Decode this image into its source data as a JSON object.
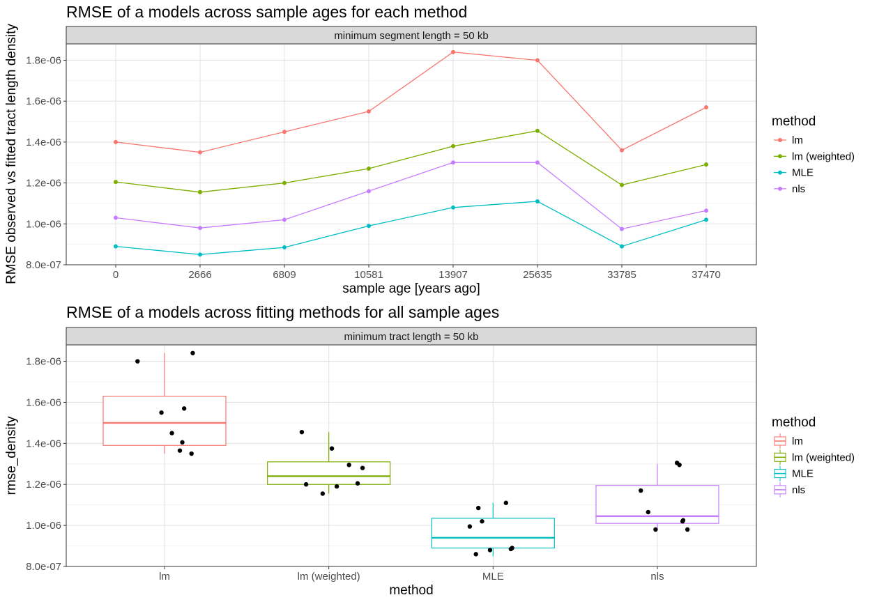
{
  "chart_data": [
    {
      "type": "line",
      "title": "RMSE of a models across sample ages for each method",
      "facet_label": "minimum segment length = 50 kb",
      "xlabel": "sample age [years ago]",
      "ylabel": "RMSE observed vs fitted tract length density",
      "categories": [
        "0",
        "2666",
        "6809",
        "10581",
        "13907",
        "25635",
        "33785",
        "37470"
      ],
      "ylim": [
        8e-07,
        1.88e-06
      ],
      "yticks": [
        8e-07,
        1e-06,
        1.2e-06,
        1.4e-06,
        1.6e-06,
        1.8e-06
      ],
      "ytick_labels": [
        "8.0e-07",
        "1.0e-06",
        "1.2e-06",
        "1.4e-06",
        "1.6e-06",
        "1.8e-06"
      ],
      "grid": true,
      "legend": {
        "title": "method",
        "position": "right"
      },
      "series": [
        {
          "name": "lm",
          "color": "#F8766D",
          "values": [
            1.4e-06,
            1.35e-06,
            1.45e-06,
            1.55e-06,
            1.84e-06,
            1.8e-06,
            1.36e-06,
            1.57e-06
          ]
        },
        {
          "name": "lm (weighted)",
          "color": "#7CAE00",
          "values": [
            1.205e-06,
            1.155e-06,
            1.2e-06,
            1.27e-06,
            1.38e-06,
            1.455e-06,
            1.19e-06,
            1.29e-06
          ]
        },
        {
          "name": "MLE",
          "color": "#00BFC4",
          "values": [
            8.9e-07,
            8.5e-07,
            8.85e-07,
            9.9e-07,
            1.08e-06,
            1.11e-06,
            8.9e-07,
            1.02e-06
          ]
        },
        {
          "name": "nls",
          "color": "#C77CFF",
          "values": [
            1.03e-06,
            9.8e-07,
            1.02e-06,
            1.16e-06,
            1.3e-06,
            1.3e-06,
            9.75e-07,
            1.065e-06
          ]
        }
      ]
    },
    {
      "type": "box",
      "title": "RMSE of a models across fitting methods for all sample ages",
      "facet_label": "minimum tract length = 50 kb",
      "xlabel": "method",
      "ylabel": "rmse_density",
      "categories": [
        "lm",
        "lm (weighted)",
        "MLE",
        "nls"
      ],
      "ylim": [
        8e-07,
        1.88e-06
      ],
      "yticks": [
        8e-07,
        1e-06,
        1.2e-06,
        1.4e-06,
        1.6e-06,
        1.8e-06
      ],
      "ytick_labels": [
        "8.0e-07",
        "1.0e-06",
        "1.2e-06",
        "1.4e-06",
        "1.6e-06",
        "1.8e-06"
      ],
      "grid": true,
      "legend": {
        "title": "method",
        "position": "right"
      },
      "boxes": [
        {
          "name": "lm",
          "color": "#F8766D",
          "min": 1.35e-06,
          "q1": 1.39e-06,
          "median": 1.5e-06,
          "q3": 1.63e-06,
          "max": 1.84e-06
        },
        {
          "name": "lm (weighted)",
          "color": "#7CAE00",
          "min": 1.155e-06,
          "q1": 1.2e-06,
          "median": 1.24e-06,
          "q3": 1.31e-06,
          "max": 1.455e-06
        },
        {
          "name": "MLE",
          "color": "#00BFC4",
          "min": 8.5e-07,
          "q1": 8.9e-07,
          "median": 9.4e-07,
          "q3": 1.035e-06,
          "max": 1.11e-06
        },
        {
          "name": "nls",
          "color": "#C77CFF",
          "min": 9.75e-07,
          "q1": 1.01e-06,
          "median": 1.045e-06,
          "q3": 1.195e-06,
          "max": 1.3e-06
        }
      ],
      "points": [
        {
          "method": "lm",
          "jitter": -0.44,
          "value": 1.8e-06
        },
        {
          "method": "lm",
          "jitter": -0.05,
          "value": 1.55e-06
        },
        {
          "method": "lm",
          "jitter": 0.12,
          "value": 1.45e-06
        },
        {
          "method": "lm",
          "jitter": 0.25,
          "value": 1.365e-06
        },
        {
          "method": "lm",
          "jitter": 0.29,
          "value": 1.405e-06
        },
        {
          "method": "lm",
          "jitter": 0.32,
          "value": 1.57e-06
        },
        {
          "method": "lm",
          "jitter": 0.44,
          "value": 1.35e-06
        },
        {
          "method": "lm",
          "jitter": 0.46,
          "value": 1.84e-06
        },
        {
          "method": "lm (weighted)",
          "jitter": -0.44,
          "value": 1.455e-06
        },
        {
          "method": "lm (weighted)",
          "jitter": -0.37,
          "value": 1.2e-06
        },
        {
          "method": "lm (weighted)",
          "jitter": -0.1,
          "value": 1.155e-06
        },
        {
          "method": "lm (weighted)",
          "jitter": 0.05,
          "value": 1.375e-06
        },
        {
          "method": "lm (weighted)",
          "jitter": 0.13,
          "value": 1.19e-06
        },
        {
          "method": "lm (weighted)",
          "jitter": 0.33,
          "value": 1.295e-06
        },
        {
          "method": "lm (weighted)",
          "jitter": 0.47,
          "value": 1.205e-06
        },
        {
          "method": "lm (weighted)",
          "jitter": 0.55,
          "value": 1.28e-06
        },
        {
          "method": "MLE",
          "jitter": -0.38,
          "value": 9.95e-07
        },
        {
          "method": "MLE",
          "jitter": -0.28,
          "value": 8.6e-07
        },
        {
          "method": "MLE",
          "jitter": -0.24,
          "value": 1.085e-06
        },
        {
          "method": "MLE",
          "jitter": -0.18,
          "value": 1.02e-06
        },
        {
          "method": "MLE",
          "jitter": -0.05,
          "value": 8.8e-07
        },
        {
          "method": "MLE",
          "jitter": 0.21,
          "value": 1.11e-06
        },
        {
          "method": "MLE",
          "jitter": 0.29,
          "value": 8.85e-07
        },
        {
          "method": "MLE",
          "jitter": 0.31,
          "value": 8.9e-07
        },
        {
          "method": "nls",
          "jitter": -0.27,
          "value": 1.17e-06
        },
        {
          "method": "nls",
          "jitter": -0.15,
          "value": 1.065e-06
        },
        {
          "method": "nls",
          "jitter": -0.03,
          "value": 9.8e-07
        },
        {
          "method": "nls",
          "jitter": 0.32,
          "value": 1.305e-06
        },
        {
          "method": "nls",
          "jitter": 0.36,
          "value": 1.295e-06
        },
        {
          "method": "nls",
          "jitter": 0.41,
          "value": 1.02e-06
        },
        {
          "method": "nls",
          "jitter": 0.42,
          "value": 1.025e-06
        },
        {
          "method": "nls",
          "jitter": 0.49,
          "value": 9.8e-07
        }
      ]
    }
  ]
}
